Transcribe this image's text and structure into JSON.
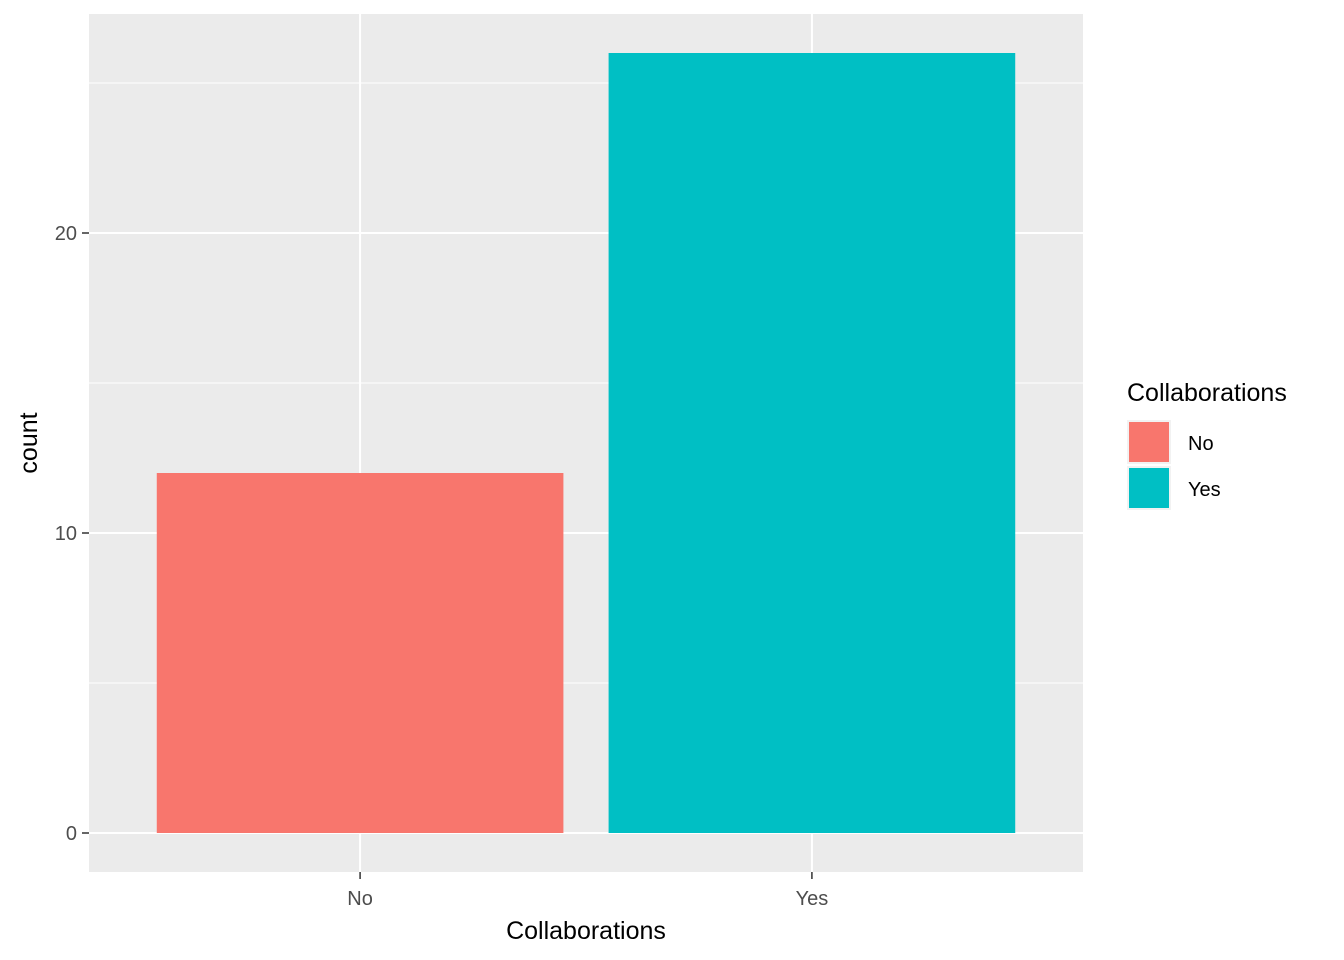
{
  "chart_data": {
    "type": "bar",
    "categories": [
      "No",
      "Yes"
    ],
    "values": [
      12,
      26
    ],
    "colors": [
      "#F8766D",
      "#00BFC4"
    ],
    "xlabel": "Collaborations",
    "ylabel": "count",
    "ylim": [
      -1.3,
      27.3
    ],
    "yticks": [
      0,
      10,
      20
    ],
    "grid": true,
    "panel_background": "#EBEBEB",
    "legend": {
      "title": "Collaborations",
      "position": "right",
      "items": [
        {
          "label": "No",
          "color": "#F8766D"
        },
        {
          "label": "Yes",
          "color": "#00BFC4"
        }
      ]
    }
  }
}
